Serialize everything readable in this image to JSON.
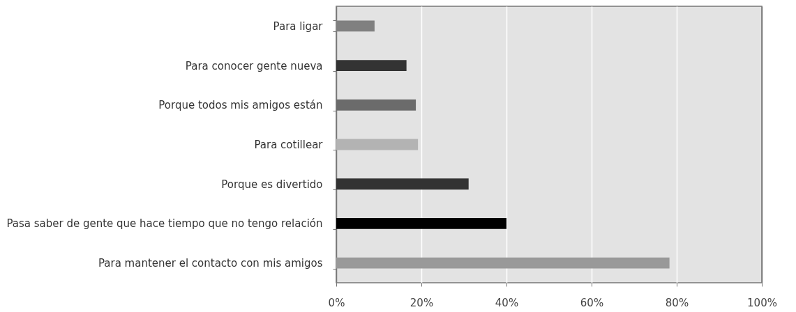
{
  "chart_data": {
    "type": "bar",
    "orientation": "horizontal",
    "categories": [
      "Para ligar",
      "Para conocer gente nueva",
      "Porque todos mis amigos están",
      "Para cotillear",
      "Porque es divertido",
      "Pasa saber de gente que hace tiempo que no tengo relación",
      "Para mantener el contacto con mis amigos"
    ],
    "values": [
      9,
      16.5,
      18.7,
      19.2,
      31.1,
      40,
      78.3
    ],
    "colors": [
      "#808080",
      "#333333",
      "#6b6b6b",
      "#b3b3b3",
      "#333333",
      "#000000",
      "#999999"
    ],
    "xlim": [
      0,
      100
    ],
    "xticks": [
      {
        "value": 0,
        "label": "0%"
      },
      {
        "value": 20,
        "label": "20%"
      },
      {
        "value": 40,
        "label": "40%"
      },
      {
        "value": 60,
        "label": "60%"
      },
      {
        "value": 80,
        "label": "80%"
      },
      {
        "value": 100,
        "label": "100%"
      }
    ],
    "grid": "x"
  }
}
